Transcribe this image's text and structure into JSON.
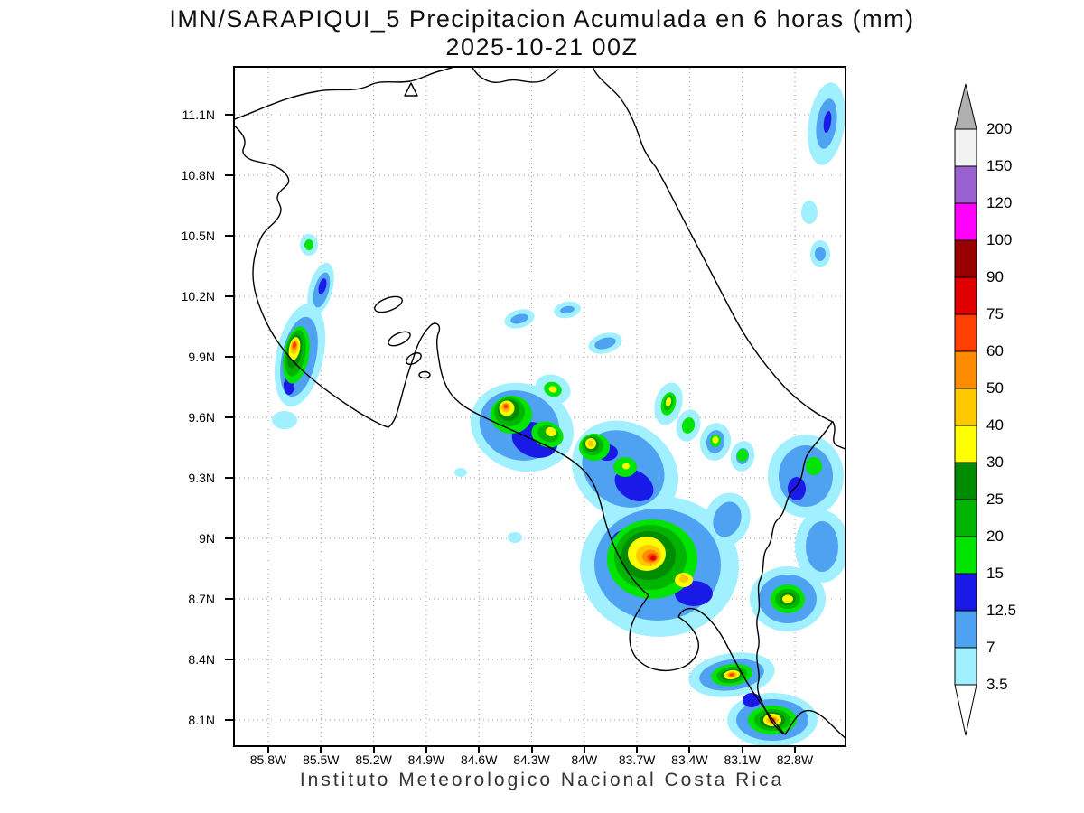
{
  "title": {
    "line1": "IMN/SARAPIQUI_5 Precipitacion Acumulada en 6 horas (mm)",
    "line2": "2025-10-21 00Z"
  },
  "footer": "Instituto Meteorologico Nacional Costa Rica",
  "map": {
    "lat_ticks": [
      "11.1N",
      "10.8N",
      "10.5N",
      "10.2N",
      "9.9N",
      "9.6N",
      "9.3N",
      "9N",
      "8.7N",
      "8.4N",
      "8.1N"
    ],
    "lon_ticks": [
      "85.8W",
      "85.5W",
      "85.2W",
      "84.9W",
      "84.6W",
      "84.3W",
      "84W",
      "83.7W",
      "83.4W",
      "83.1W",
      "82.8W"
    ]
  },
  "colorbar": {
    "units": "mm",
    "boundary_labels_top_to_bottom": [
      "200",
      "150",
      "120",
      "100",
      "90",
      "75",
      "60",
      "50",
      "40",
      "30",
      "25",
      "20",
      "15",
      "12.5",
      "7",
      "3.5"
    ],
    "segment_colors_top_to_bottom": [
      "#f2f2f2",
      "#9861cf",
      "#ff00ff",
      "#990000",
      "#e00000",
      "#ff4000",
      "#ff8c00",
      "#ffc800",
      "#ffff00",
      "#008c00",
      "#00b400",
      "#00e400",
      "#1a1ae8",
      "#4fa2f2",
      "#a0f0ff"
    ],
    "above_max_arrow_color": "#b0b0b0",
    "below_min_arrow_color": "#ffffff"
  },
  "chart_data": {
    "type": "heatmap",
    "title": "IMN/SARAPIQUI_5 Precipitacion Acumulada en 6 horas (mm)",
    "subtitle": "2025-10-21 00Z",
    "variable": "Precipitacion Acumulada en 6 horas",
    "units": "mm",
    "scale_levels": [
      3.5,
      7,
      12.5,
      15,
      20,
      25,
      30,
      40,
      50,
      60,
      75,
      90,
      100,
      120,
      150,
      200
    ],
    "lat_range": [
      "8.1N",
      "11.1N"
    ],
    "lon_range": [
      "85.8W",
      "82.8W"
    ],
    "grid": "dotted",
    "legend_position": "right"
  }
}
